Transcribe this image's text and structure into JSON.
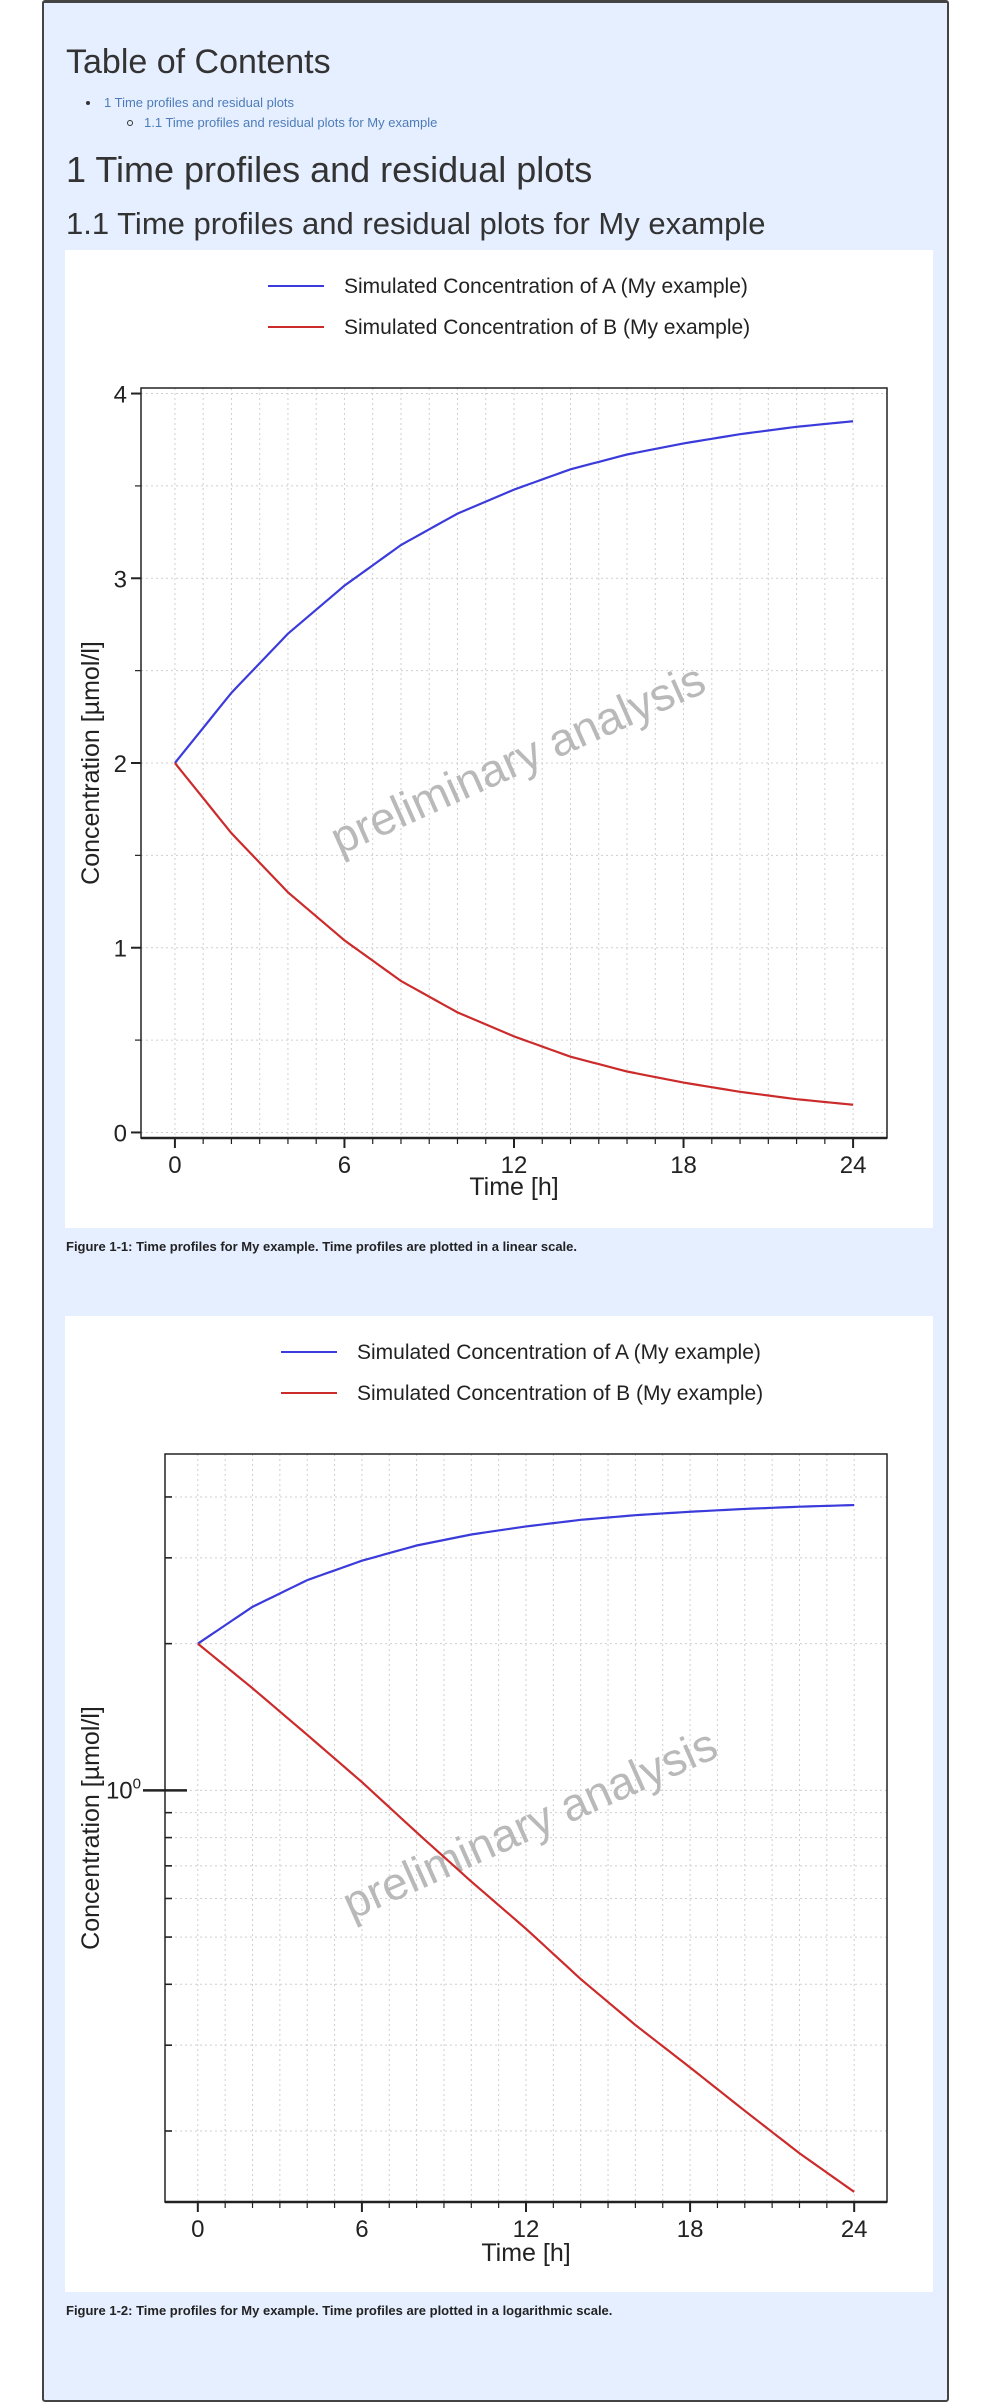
{
  "toc": {
    "title": "Table of Contents",
    "items": [
      {
        "label": "1 Time profiles and residual plots",
        "level": 1
      },
      {
        "label": "1.1 Time profiles and residual plots for My example",
        "level": 2
      }
    ]
  },
  "headings": {
    "h1": "1 Time profiles and residual plots",
    "h2": "1.1 Time profiles and residual plots for My example"
  },
  "colors": {
    "series_a": "#3b3bdb",
    "series_b": "#cc2b2b",
    "page_bg": "#e6efff"
  },
  "watermark": "preliminary analysis",
  "figures": [
    {
      "caption": "Figure 1-1: Time profiles for My example. Time profiles are plotted in a linear scale.",
      "ytick_labels": [
        "0",
        "1",
        "2",
        "3",
        "4"
      ],
      "xtick_labels": [
        "0",
        "6",
        "12",
        "18",
        "24"
      ]
    },
    {
      "caption": "Figure 1-2: Time profiles for My example. Time profiles are plotted in a logarithmic scale.",
      "ytick_labels": [
        "10",
        "0"
      ],
      "xtick_labels": [
        "0",
        "6",
        "12",
        "18",
        "24"
      ]
    }
  ],
  "chart_data": [
    {
      "type": "line",
      "title": "",
      "xlabel": "Time [h]",
      "ylabel": "Concentration [µmol/l]",
      "xlim": [
        -1.2,
        25.2
      ],
      "ylim": [
        -0.03,
        4.03
      ],
      "xticks": [
        0,
        6,
        12,
        18,
        24
      ],
      "yticks": [
        0,
        1,
        2,
        3,
        4
      ],
      "yscale": "linear",
      "grid": true,
      "legend": "top-center",
      "x": [
        0,
        2,
        4,
        6,
        8,
        10,
        12,
        14,
        16,
        18,
        20,
        22,
        24
      ],
      "series": [
        {
          "name": "Simulated Concentration of A (My example)",
          "values": [
            2.0,
            2.38,
            2.7,
            2.96,
            3.18,
            3.35,
            3.48,
            3.59,
            3.67,
            3.73,
            3.78,
            3.82,
            3.85
          ]
        },
        {
          "name": "Simulated Concentration of B (My example)",
          "values": [
            2.0,
            1.62,
            1.3,
            1.04,
            0.82,
            0.65,
            0.52,
            0.41,
            0.33,
            0.27,
            0.22,
            0.18,
            0.15
          ]
        }
      ]
    },
    {
      "type": "line",
      "title": "",
      "xlabel": "Time [h]",
      "ylabel": "Concentration [µmol/l]",
      "xlim": [
        -1.2,
        25.2
      ],
      "ylim": [
        0.143,
        4.9
      ],
      "xticks": [
        0,
        6,
        12,
        18,
        24
      ],
      "yticks": [
        1
      ],
      "yscale": "log",
      "grid": true,
      "legend": "top-center",
      "x": [
        0,
        2,
        4,
        6,
        8,
        10,
        12,
        14,
        16,
        18,
        20,
        22,
        24
      ],
      "series": [
        {
          "name": "Simulated Concentration of A (My example)",
          "values": [
            2.0,
            2.38,
            2.7,
            2.96,
            3.18,
            3.35,
            3.48,
            3.59,
            3.67,
            3.73,
            3.78,
            3.82,
            3.85
          ]
        },
        {
          "name": "Simulated Concentration of B (My example)",
          "values": [
            2.0,
            1.62,
            1.3,
            1.04,
            0.82,
            0.65,
            0.52,
            0.41,
            0.33,
            0.27,
            0.22,
            0.18,
            0.15
          ]
        }
      ]
    }
  ]
}
